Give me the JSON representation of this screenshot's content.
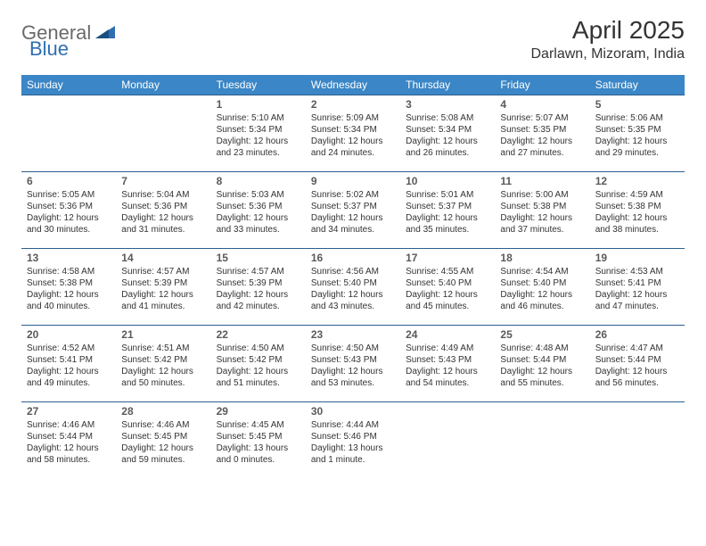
{
  "logo": {
    "part1": "General",
    "part2": "Blue"
  },
  "title": "April 2025",
  "location": "Darlawn, Mizoram, India",
  "colors": {
    "header_bg": "#3b86c6",
    "header_text": "#ffffff",
    "border": "#2b5f8f",
    "body_text": "#333333",
    "logo_gray": "#6a6a6a",
    "logo_blue": "#2f6fb0"
  },
  "dayHeaders": [
    "Sunday",
    "Monday",
    "Tuesday",
    "Wednesday",
    "Thursday",
    "Friday",
    "Saturday"
  ],
  "weeks": [
    [
      null,
      null,
      {
        "n": "1",
        "sr": "5:10 AM",
        "ss": "5:34 PM",
        "dl": "12 hours and 23 minutes."
      },
      {
        "n": "2",
        "sr": "5:09 AM",
        "ss": "5:34 PM",
        "dl": "12 hours and 24 minutes."
      },
      {
        "n": "3",
        "sr": "5:08 AM",
        "ss": "5:34 PM",
        "dl": "12 hours and 26 minutes."
      },
      {
        "n": "4",
        "sr": "5:07 AM",
        "ss": "5:35 PM",
        "dl": "12 hours and 27 minutes."
      },
      {
        "n": "5",
        "sr": "5:06 AM",
        "ss": "5:35 PM",
        "dl": "12 hours and 29 minutes."
      }
    ],
    [
      {
        "n": "6",
        "sr": "5:05 AM",
        "ss": "5:36 PM",
        "dl": "12 hours and 30 minutes."
      },
      {
        "n": "7",
        "sr": "5:04 AM",
        "ss": "5:36 PM",
        "dl": "12 hours and 31 minutes."
      },
      {
        "n": "8",
        "sr": "5:03 AM",
        "ss": "5:36 PM",
        "dl": "12 hours and 33 minutes."
      },
      {
        "n": "9",
        "sr": "5:02 AM",
        "ss": "5:37 PM",
        "dl": "12 hours and 34 minutes."
      },
      {
        "n": "10",
        "sr": "5:01 AM",
        "ss": "5:37 PM",
        "dl": "12 hours and 35 minutes."
      },
      {
        "n": "11",
        "sr": "5:00 AM",
        "ss": "5:38 PM",
        "dl": "12 hours and 37 minutes."
      },
      {
        "n": "12",
        "sr": "4:59 AM",
        "ss": "5:38 PM",
        "dl": "12 hours and 38 minutes."
      }
    ],
    [
      {
        "n": "13",
        "sr": "4:58 AM",
        "ss": "5:38 PM",
        "dl": "12 hours and 40 minutes."
      },
      {
        "n": "14",
        "sr": "4:57 AM",
        "ss": "5:39 PM",
        "dl": "12 hours and 41 minutes."
      },
      {
        "n": "15",
        "sr": "4:57 AM",
        "ss": "5:39 PM",
        "dl": "12 hours and 42 minutes."
      },
      {
        "n": "16",
        "sr": "4:56 AM",
        "ss": "5:40 PM",
        "dl": "12 hours and 43 minutes."
      },
      {
        "n": "17",
        "sr": "4:55 AM",
        "ss": "5:40 PM",
        "dl": "12 hours and 45 minutes."
      },
      {
        "n": "18",
        "sr": "4:54 AM",
        "ss": "5:40 PM",
        "dl": "12 hours and 46 minutes."
      },
      {
        "n": "19",
        "sr": "4:53 AM",
        "ss": "5:41 PM",
        "dl": "12 hours and 47 minutes."
      }
    ],
    [
      {
        "n": "20",
        "sr": "4:52 AM",
        "ss": "5:41 PM",
        "dl": "12 hours and 49 minutes."
      },
      {
        "n": "21",
        "sr": "4:51 AM",
        "ss": "5:42 PM",
        "dl": "12 hours and 50 minutes."
      },
      {
        "n": "22",
        "sr": "4:50 AM",
        "ss": "5:42 PM",
        "dl": "12 hours and 51 minutes."
      },
      {
        "n": "23",
        "sr": "4:50 AM",
        "ss": "5:43 PM",
        "dl": "12 hours and 53 minutes."
      },
      {
        "n": "24",
        "sr": "4:49 AM",
        "ss": "5:43 PM",
        "dl": "12 hours and 54 minutes."
      },
      {
        "n": "25",
        "sr": "4:48 AM",
        "ss": "5:44 PM",
        "dl": "12 hours and 55 minutes."
      },
      {
        "n": "26",
        "sr": "4:47 AM",
        "ss": "5:44 PM",
        "dl": "12 hours and 56 minutes."
      }
    ],
    [
      {
        "n": "27",
        "sr": "4:46 AM",
        "ss": "5:44 PM",
        "dl": "12 hours and 58 minutes."
      },
      {
        "n": "28",
        "sr": "4:46 AM",
        "ss": "5:45 PM",
        "dl": "12 hours and 59 minutes."
      },
      {
        "n": "29",
        "sr": "4:45 AM",
        "ss": "5:45 PM",
        "dl": "13 hours and 0 minutes."
      },
      {
        "n": "30",
        "sr": "4:44 AM",
        "ss": "5:46 PM",
        "dl": "13 hours and 1 minute."
      },
      null,
      null,
      null
    ]
  ],
  "labels": {
    "sunrise": "Sunrise:",
    "sunset": "Sunset:",
    "daylight": "Daylight:"
  }
}
